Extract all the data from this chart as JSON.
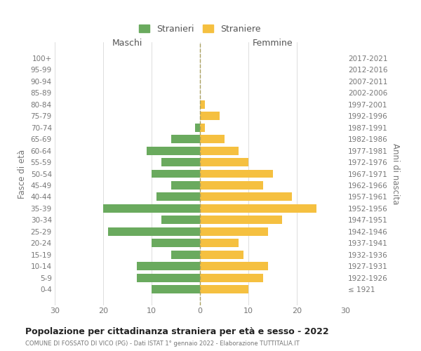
{
  "age_groups": [
    "100+",
    "95-99",
    "90-94",
    "85-89",
    "80-84",
    "75-79",
    "70-74",
    "65-69",
    "60-64",
    "55-59",
    "50-54",
    "45-49",
    "40-44",
    "35-39",
    "30-34",
    "25-29",
    "20-24",
    "15-19",
    "10-14",
    "5-9",
    "0-4"
  ],
  "birth_years": [
    "≤ 1921",
    "1922-1926",
    "1927-1931",
    "1932-1936",
    "1937-1941",
    "1942-1946",
    "1947-1951",
    "1952-1956",
    "1957-1961",
    "1962-1966",
    "1967-1971",
    "1972-1976",
    "1977-1981",
    "1982-1986",
    "1987-1991",
    "1992-1996",
    "1997-2001",
    "2002-2006",
    "2007-2011",
    "2012-2016",
    "2017-2021"
  ],
  "males": [
    0,
    0,
    0,
    0,
    0,
    0,
    1,
    6,
    11,
    8,
    10,
    6,
    9,
    20,
    8,
    19,
    10,
    6,
    13,
    13,
    10
  ],
  "females": [
    0,
    0,
    0,
    0,
    1,
    4,
    1,
    5,
    8,
    10,
    15,
    13,
    19,
    24,
    17,
    14,
    8,
    9,
    14,
    13,
    10
  ],
  "male_color": "#6aaa5e",
  "female_color": "#f5c040",
  "dashed_line_color": "#aaa060",
  "grid_color": "#d0d0d0",
  "title": "Popolazione per cittadinanza straniera per età e sesso - 2022",
  "subtitle": "COMUNE DI FOSSATO DI VICO (PG) - Dati ISTAT 1° gennaio 2022 - Elaborazione TUTTITALIA.IT",
  "xlabel_left": "Maschi",
  "xlabel_right": "Femmine",
  "ylabel_left": "Fasce di età",
  "ylabel_right": "Anni di nascita",
  "legend_male": "Stranieri",
  "legend_female": "Straniere",
  "xlim": 30,
  "background_color": "#ffffff"
}
